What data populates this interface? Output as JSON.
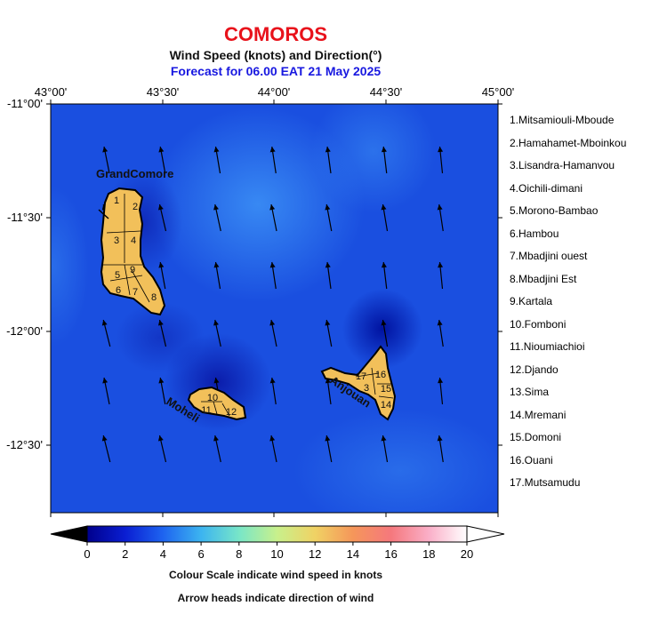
{
  "titles": {
    "country": "COMOROS",
    "subtitle": "Wind Speed (knots) and Direction(°)",
    "forecast": "Forecast for  06.00 EAT 21 May 2025"
  },
  "axes": {
    "lon_ticks": [
      "43°00'",
      "43°30'",
      "44°00'",
      "44°30'",
      "45°00'"
    ],
    "lat_ticks": [
      "-11°00'",
      "-11°30'",
      "-12°00'",
      "-12°30'"
    ]
  },
  "islands": {
    "grand_comore": "GrandComore",
    "moheli": "Moheli",
    "anjouan": "Anjouan"
  },
  "region_numbers": {
    "grand_comore": [
      "1",
      "2",
      "3",
      "4",
      "5",
      "9",
      "6",
      "7",
      "8"
    ],
    "moheli": [
      "10",
      "11",
      "12"
    ],
    "anjouan": [
      "17",
      "16",
      "3",
      "15",
      "14"
    ]
  },
  "region_legend": [
    "1.Mitsamiouli-Mboude",
    "2.Hamahamet-Mboinkou",
    "3.Lisandra-Hamanvou",
    "4.Oichili-dimani",
    "5.Morono-Bambao",
    "6.Hambou",
    "7.Mbadjini ouest",
    "8.Mbadjini Est",
    "9.Kartala",
    "10.Fomboni",
    "11.Nioumiachioi",
    "12.Djando",
    "13.Sima",
    "14.Mremani",
    "15.Domoni",
    "16.Ouani",
    "17.Mutsamudu"
  ],
  "colorbar": {
    "ticks": [
      "0",
      "2",
      "4",
      "6",
      "8",
      "10",
      "12",
      "14",
      "16",
      "18",
      "20"
    ],
    "colors": [
      "#00008c",
      "#0a1ed2",
      "#1e64f0",
      "#3cb4f0",
      "#78e6c8",
      "#c8f08c",
      "#f0d264",
      "#f5965a",
      "#f5787d",
      "#faafc8",
      "#ffffff"
    ]
  },
  "captions": {
    "scale": "Colour Scale indicate wind speed in knots",
    "arrows": "Arrow heads indicate direction of wind"
  },
  "colors": {
    "land": "#f2c05a",
    "sea_base": "#1a4fe0",
    "title_red": "#e8121b",
    "title_blue": "#1818e0"
  }
}
